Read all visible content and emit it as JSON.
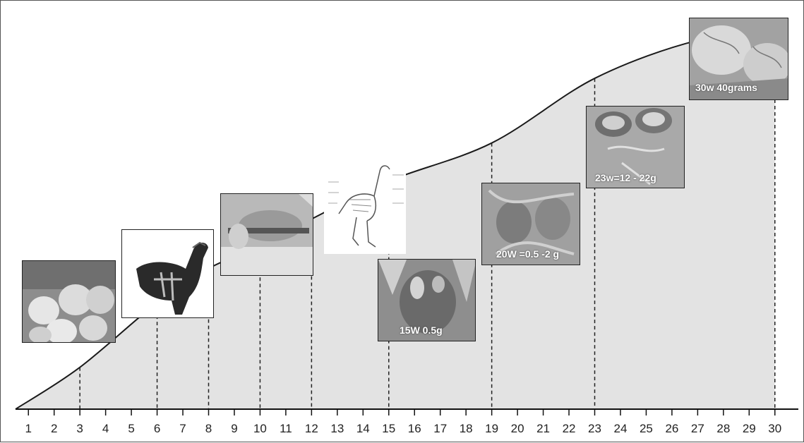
{
  "chart_data": {
    "type": "area",
    "title": "",
    "xlabel": "",
    "ylabel": "",
    "x_ticks": [
      1,
      2,
      3,
      4,
      5,
      6,
      7,
      8,
      9,
      10,
      11,
      12,
      13,
      14,
      15,
      16,
      17,
      18,
      19,
      20,
      21,
      22,
      23,
      24,
      25,
      26,
      27,
      28,
      29,
      30
    ],
    "xlim": [
      0.5,
      30.5
    ],
    "curve": {
      "x": [
        0.5,
        3,
        6,
        8,
        10,
        12,
        15,
        19,
        23,
        27,
        30
      ],
      "y": [
        0.0,
        0.11,
        0.28,
        0.37,
        0.43,
        0.5,
        0.6,
        0.7,
        0.87,
        0.97,
        0.99
      ]
    },
    "grid": false,
    "legend": "none",
    "fill_color": "#e3e3e3",
    "line_color": "#1a1a1a",
    "markers": [
      {
        "week": 3,
        "image": "chicks-photo"
      },
      {
        "week": 6,
        "image": "rooster-skeleton-drawing"
      },
      {
        "week": 8,
        "image": "bird-handling-photo"
      },
      {
        "week": 10,
        "image": "bird-handling-photo"
      },
      {
        "week": 12,
        "image": "skeleton-diagram"
      },
      {
        "week": 15,
        "image": "testes-photo-15w",
        "caption": "15W 0.5g"
      },
      {
        "week": 19,
        "image": "testes-photo-20w",
        "caption": "20W =0.5 -2 g"
      },
      {
        "week": 23,
        "image": "testes-photo-23w",
        "caption": "23w=12 - 22g"
      },
      {
        "week": 30,
        "image": "testes-photo-30w",
        "caption": "30w 40grams"
      }
    ]
  }
}
